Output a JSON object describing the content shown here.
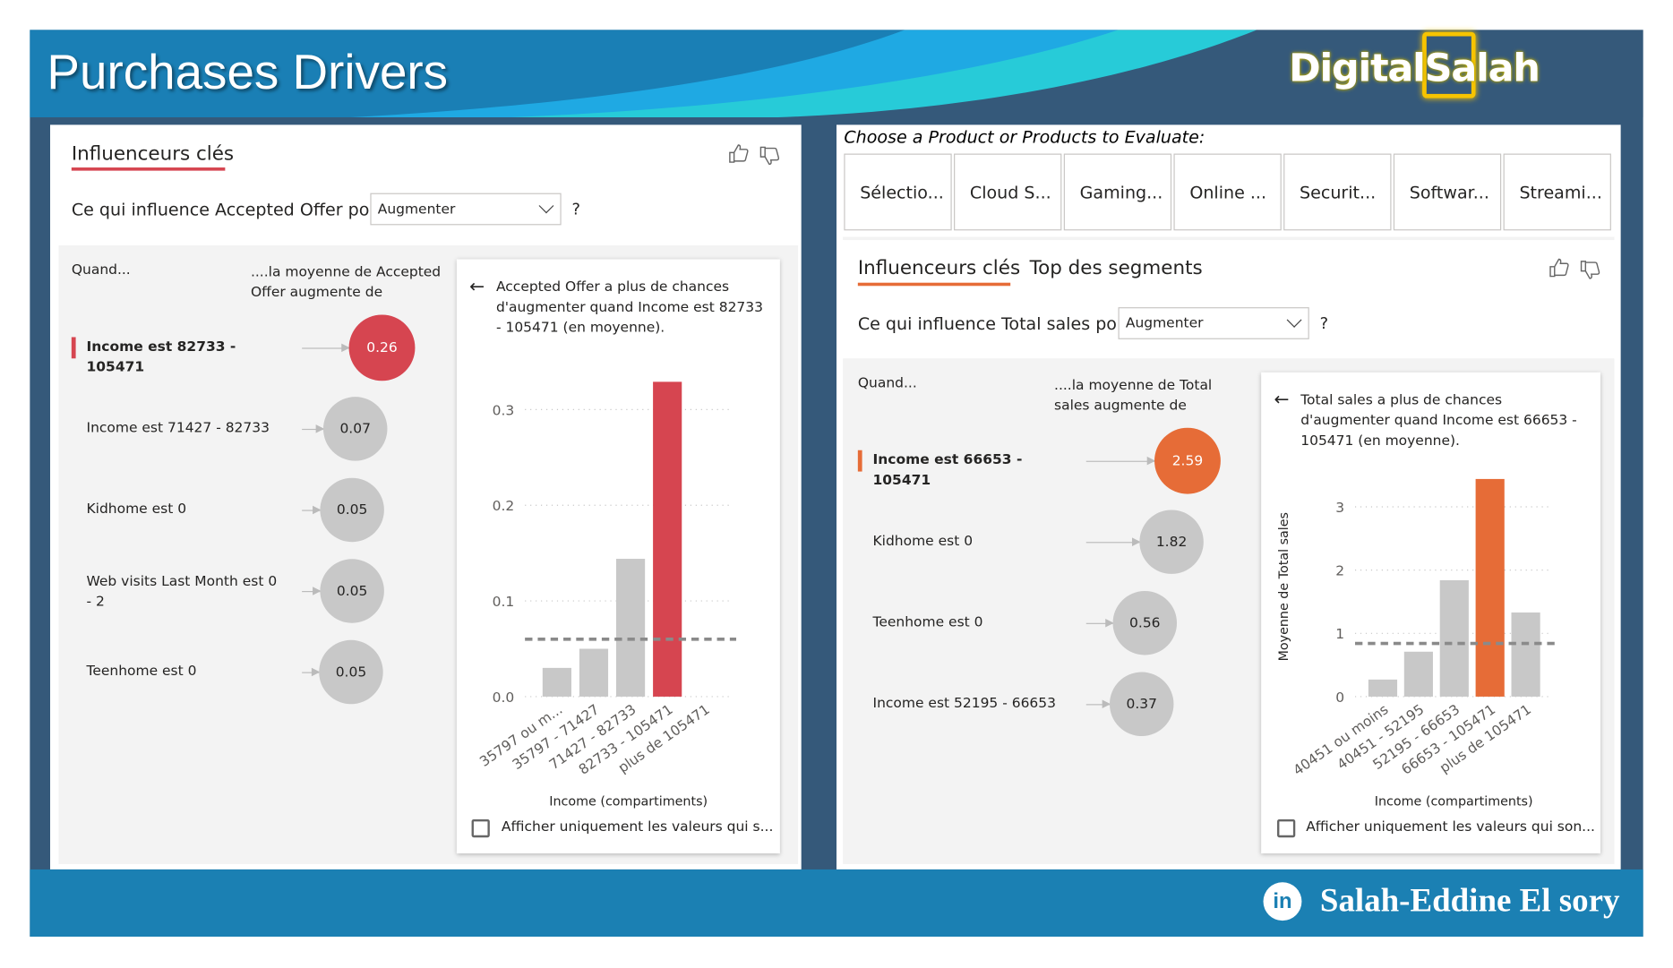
{
  "header": {
    "title": "Purchases Drivers",
    "logo_text": "DigitalSalah",
    "colors": {
      "band": "#1a7fb5",
      "wave_blue": "#1fa9e3",
      "wave_cyan": "#27cbd8",
      "frame": "#35597a"
    }
  },
  "left": {
    "tab": "Influenceurs clés",
    "prompt": "Ce qui influence Accepted Offer pour",
    "dropdown": "Augmenter",
    "help": "?",
    "col_when": "Quand...",
    "col_avg": "....la moyenne de Accepted Offer augmente de",
    "accent": "#d64550",
    "influencers": [
      {
        "label": "Income est 82733 - 105471",
        "value": "0.26",
        "selected": true
      },
      {
        "label": "Income est 71427 - 82733",
        "value": "0.07"
      },
      {
        "label": "Kidhome est 0",
        "value": "0.05"
      },
      {
        "label": "Web visits Last Month est 0 - 2",
        "value": "0.05"
      },
      {
        "label": "Teenhome est 0",
        "value": "0.05"
      }
    ],
    "detail": {
      "text": "Accepted Offer a plus de chances d'augmenter quand Income est 82733 - 105471 (en moyenne).",
      "checkbox": "Afficher uniquement les valeurs qui s..."
    }
  },
  "right": {
    "slicer_title": "Choose a Product or Products to Evaluate:",
    "slicers": [
      "Sélectio...",
      "Cloud S...",
      "Gaming...",
      "Online ...",
      "Securit...",
      "Softwar...",
      "Streami..."
    ],
    "tabs": [
      "Influenceurs clés",
      "Top des segments"
    ],
    "prompt": "Ce qui influence Total sales pour",
    "dropdown": "Augmenter",
    "help": "?",
    "col_when": "Quand...",
    "col_avg": "....la moyenne de Total sales augmente de",
    "accent": "#e66c37",
    "influencers": [
      {
        "label": "Income est 66653 - 105471",
        "value": "2.59",
        "selected": true
      },
      {
        "label": "Kidhome est 0",
        "value": "1.82"
      },
      {
        "label": "Teenhome est 0",
        "value": "0.56"
      },
      {
        "label": "Income est 52195 - 66653",
        "value": "0.37"
      }
    ],
    "detail": {
      "text": "Total sales a plus de chances d'augmenter quand Income est 66653 - 105471 (en moyenne).",
      "checkbox": "Afficher uniquement les valeurs qui son..."
    }
  },
  "footer": {
    "author": "Salah-Eddine El sory",
    "icon": "linkedin-icon"
  },
  "chart_data": [
    {
      "type": "bar",
      "xlabel": "Income (compartiments)",
      "ylabel": "",
      "categories": [
        "35797 ou m...",
        "35797 - 71427",
        "71427 - 82733",
        "82733 - 105471",
        "plus de 105471"
      ],
      "values": [
        0.03,
        0.05,
        0.144,
        0.329,
        0
      ],
      "highlight_index": 3,
      "average": 0.06,
      "ylim": [
        0,
        0.33
      ],
      "yticks": [
        "0.0",
        "0.1",
        "0.2",
        "0.3"
      ],
      "grid": true,
      "colors": {
        "bar": "#c8c8c8",
        "highlight": "#d64550",
        "average": "#8a8a8a"
      }
    },
    {
      "type": "bar",
      "xlabel": "Income (compartiments)",
      "ylabel": "Moyenne de Total sales",
      "categories": [
        "40451 ou moins",
        "40451 - 52195",
        "52195 - 66653",
        "66653 - 105471",
        "plus de 105471"
      ],
      "values": [
        0.27,
        0.71,
        1.84,
        3.44,
        1.33
      ],
      "highlight_index": 3,
      "average": 0.84,
      "ylim": [
        0,
        3.44
      ],
      "yticks": [
        "0",
        "1",
        "2",
        "3"
      ],
      "grid": true,
      "colors": {
        "bar": "#c8c8c8",
        "highlight": "#e66c37",
        "average": "#8a8a8a"
      }
    }
  ]
}
